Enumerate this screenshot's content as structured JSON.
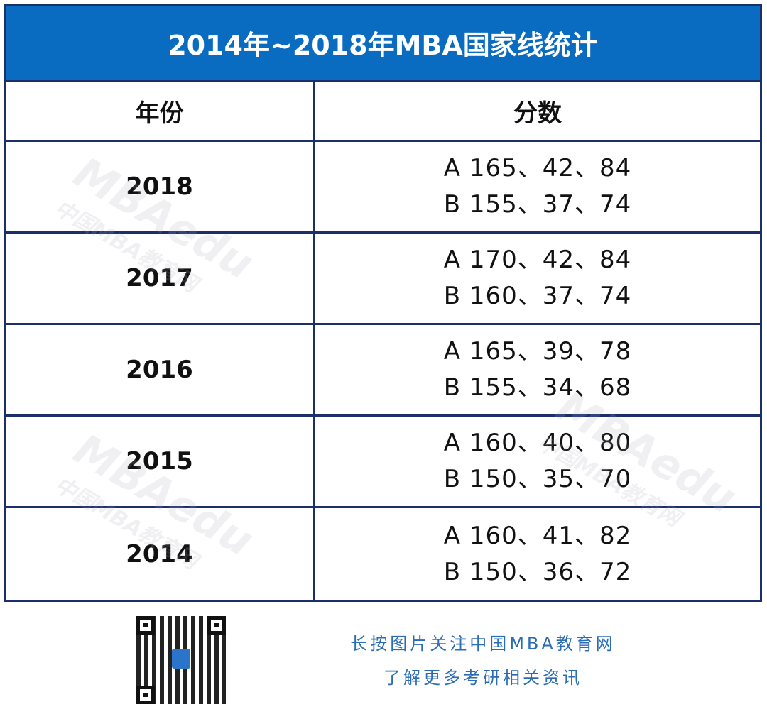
{
  "title": "2014年~2018年MBA国家线统计",
  "headers": {
    "year": "年份",
    "score": "分数"
  },
  "rows": [
    {
      "year": "2018",
      "a": "A  165、42、84",
      "b": "B  155、37、74"
    },
    {
      "year": "2017",
      "a": "A  170、42、84",
      "b": "B  160、37、74"
    },
    {
      "year": "2016",
      "a": "A  165、39、78",
      "b": "B  155、34、68"
    },
    {
      "year": "2015",
      "a": "A  160、40、80",
      "b": "B  150、35、70"
    },
    {
      "year": "2014",
      "a": "A  160、41、82",
      "b": "B  150、36、72"
    }
  ],
  "watermark": {
    "brand": "MBAedu",
    "site": "中国MBA教育网"
  },
  "footer": {
    "line1": "长按图片关注中国MBA教育网",
    "line2": "了解更多考研相关资讯"
  },
  "colors": {
    "title_bg": "#0a6cc0",
    "border": "#1b2f6b",
    "footer_text": "#2a6db5"
  }
}
